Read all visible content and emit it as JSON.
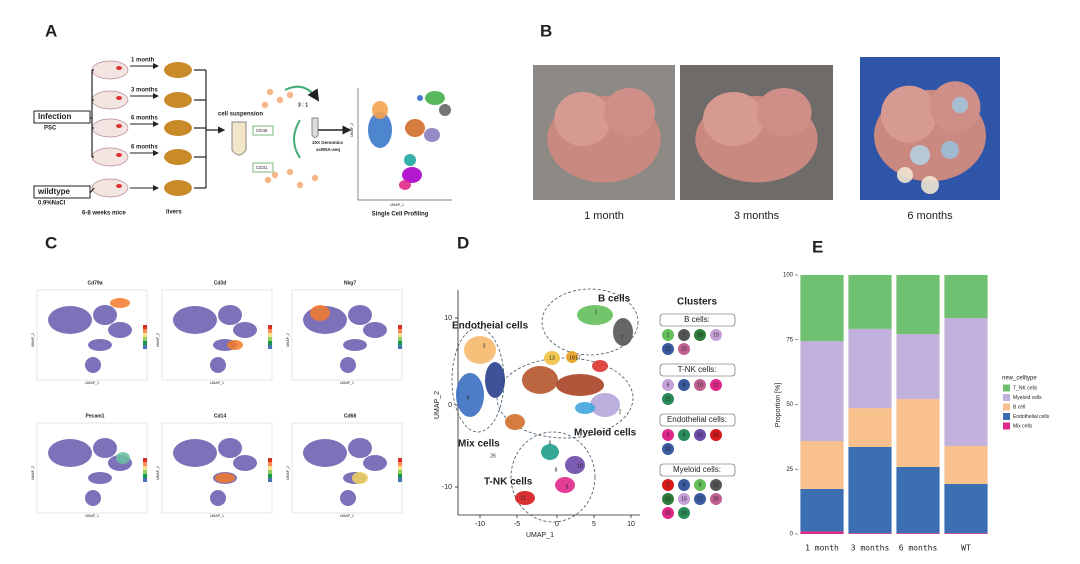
{
  "panels": {
    "a": "A",
    "b": "B",
    "c": "C",
    "d": "D",
    "e": "E"
  },
  "panel_a": {
    "infection": "Infection",
    "psc": "PSC",
    "wildtype": "wildtype",
    "nacl": "0.9%NaCl",
    "timepoints": [
      "1 month",
      "3 months",
      "6 months",
      "6 months"
    ],
    "mice": "6-8 weeks mice",
    "livers": "livers",
    "cell_suspension": "cell suspension",
    "cd45": "CD45",
    "cd31": "CD31",
    "ratio": "3 : 1",
    "seq": [
      "10X Genomics",
      "scRNA-seq"
    ],
    "umap_x": "UMAP_1",
    "umap_y": "UMAP_2",
    "profiling": "Single Cell Profiling"
  },
  "panel_b": {
    "captions": [
      "1 month",
      "3 months",
      "6 months"
    ]
  },
  "panel_c": {
    "genes": [
      "Cd79a",
      "Cd3d",
      "Nkg7",
      "Pecam1",
      "Cd14",
      "Cd68"
    ],
    "x_label": "UMAP_1",
    "y_label": "UMAP_2"
  },
  "panel_d": {
    "groups": [
      "Endotheial cells",
      "B cells",
      "Myeloid cells",
      "Mix cells",
      "T-NK cells"
    ],
    "x_label": "UMAP_1",
    "y_label": "UMAP_2",
    "xticks": [
      "-10",
      "-5",
      "0",
      "5",
      "10"
    ],
    "yticks": [
      "10",
      "0",
      "-10"
    ],
    "map_labels": [
      "1",
      "7",
      "19",
      "3",
      "4",
      "13",
      "17",
      "2",
      "6",
      "26",
      "8",
      "10",
      "5",
      "11"
    ],
    "legend_title": "Clusters",
    "legend": [
      {
        "name": "B cells:",
        "ids": [
          "1",
          "7",
          "18",
          "19",
          "22",
          "23"
        ]
      },
      {
        "name": "T-NK cells:",
        "ids": [
          "5",
          "8",
          "10",
          "11",
          "21"
        ]
      },
      {
        "name": "Endothelial cells:",
        "ids": [
          "3",
          "4",
          "14",
          "16",
          "20"
        ]
      },
      {
        "name": "Myeloid cells:",
        "ids": [
          "2",
          "6",
          "9",
          "12",
          "13",
          "15",
          "17",
          "20",
          "23",
          "24"
        ]
      }
    ]
  },
  "chart_data": {
    "type": "stacked_bar",
    "ylabel": "Proportion [%]",
    "legend_title": "new_celltype",
    "legend": "right",
    "categories": [
      "1 month",
      "3 months",
      "6 months",
      "WT"
    ],
    "series": [
      {
        "name": "T_NK cells",
        "color": "#6fc070",
        "values": [
          25.5,
          20.8,
          22.8,
          16.6
        ]
      },
      {
        "name": "Myeloid cells",
        "color": "#c3b1dd",
        "values": [
          38.6,
          30.6,
          25.1,
          49.4
        ]
      },
      {
        "name": "B cell",
        "color": "#f7c08c",
        "values": [
          18.5,
          15,
          26.2,
          14.7
        ]
      },
      {
        "name": "Endothelial cells",
        "color": "#3b6fb2",
        "values": [
          16.4,
          33.3,
          25.6,
          19
        ]
      },
      {
        "name": "Mix cells",
        "color": "#e0288a",
        "values": [
          1,
          0.3,
          0.3,
          0.3
        ]
      }
    ],
    "ylim": [
      0,
      100
    ],
    "yticks": [
      0,
      25,
      50,
      75,
      100
    ]
  }
}
